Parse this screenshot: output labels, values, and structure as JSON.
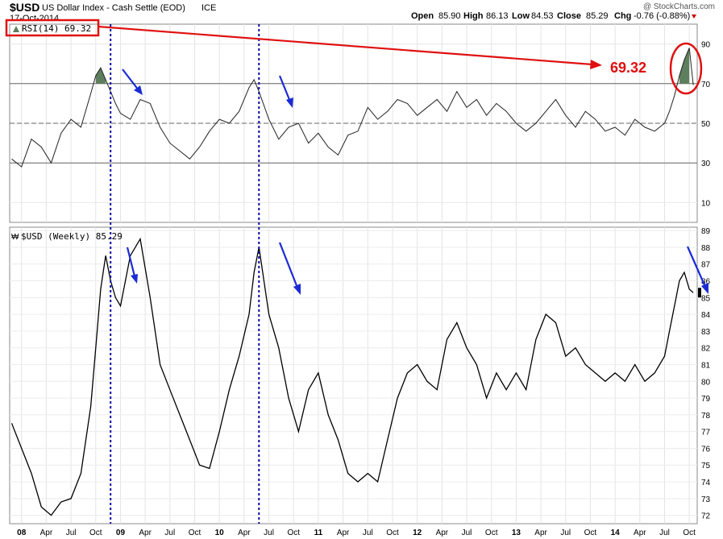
{
  "header": {
    "symbol": "$USD",
    "name": "US Dollar Index - Cash Settle (EOD)",
    "exchange": "ICE",
    "date": "17-Oct-2014",
    "open_label": "Open",
    "open": "85.90",
    "high_label": "High",
    "high": "86.13",
    "low_label": "Low",
    "low": "84.53",
    "close_label": "Close",
    "close": "85.29",
    "chg_label": "Chg",
    "chg": "-0.76 (-0.88%)",
    "watermark": "@ StockCharts.com"
  },
  "colors": {
    "price": "#000000",
    "rsi": "#222222",
    "overbought_fill": "#5d7f5d",
    "oversold_fill": "#a07070",
    "annotation_red": "#e01010",
    "arrow_blue": "#1a2bd6",
    "vline_blue": "#0a0aa0",
    "chg_red": "#cc0000"
  },
  "chart_data": [
    {
      "type": "line",
      "title": "RSI(14) 69.32",
      "ylim": [
        0,
        100
      ],
      "y_ticks": [
        "10",
        "30",
        "50",
        "70",
        "90"
      ],
      "reference_lines": [
        30,
        50,
        70
      ],
      "x": [
        2007.9,
        2008.0,
        2008.1,
        2008.2,
        2008.3,
        2008.4,
        2008.5,
        2008.6,
        2008.7,
        2008.75,
        2008.8,
        2008.85,
        2008.9,
        2008.95,
        2009.0,
        2009.1,
        2009.2,
        2009.3,
        2009.4,
        2009.5,
        2009.6,
        2009.7,
        2009.8,
        2009.9,
        2010.0,
        2010.1,
        2010.2,
        2010.3,
        2010.35,
        2010.4,
        2010.5,
        2010.6,
        2010.7,
        2010.8,
        2010.9,
        2011.0,
        2011.1,
        2011.2,
        2011.3,
        2011.4,
        2011.5,
        2011.6,
        2011.7,
        2011.8,
        2011.9,
        2012.0,
        2012.1,
        2012.2,
        2012.3,
        2012.4,
        2012.5,
        2012.6,
        2012.7,
        2012.8,
        2012.9,
        2013.0,
        2013.1,
        2013.2,
        2013.3,
        2013.4,
        2013.5,
        2013.6,
        2013.7,
        2013.8,
        2013.9,
        2014.0,
        2014.1,
        2014.2,
        2014.3,
        2014.4,
        2014.5,
        2014.55,
        2014.6,
        2014.65,
        2014.7,
        2014.75,
        2014.79
      ],
      "y": [
        32,
        28,
        42,
        38,
        30,
        45,
        52,
        48,
        65,
        74,
        78,
        72,
        66,
        60,
        55,
        52,
        62,
        60,
        48,
        40,
        36,
        32,
        38,
        46,
        52,
        50,
        56,
        68,
        72,
        66,
        52,
        42,
        48,
        50,
        40,
        45,
        38,
        34,
        44,
        46,
        58,
        52,
        56,
        62,
        60,
        54,
        58,
        62,
        56,
        66,
        58,
        62,
        54,
        60,
        56,
        50,
        46,
        50,
        56,
        62,
        54,
        48,
        56,
        52,
        46,
        48,
        44,
        52,
        48,
        46,
        50,
        56,
        64,
        74,
        82,
        88,
        69.32
      ],
      "overbought_above": 70,
      "oversold_below": 30
    },
    {
      "type": "line",
      "title": "$USD (Weekly) 85.29",
      "ylim": [
        71.5,
        89.2
      ],
      "y_ticks": [
        "72",
        "73",
        "74",
        "75",
        "76",
        "77",
        "78",
        "79",
        "80",
        "81",
        "82",
        "83",
        "84",
        "85",
        "86",
        "87",
        "88",
        "89"
      ],
      "x_ticks": [
        {
          "label": "08",
          "x": 2008.0
        },
        {
          "label": "Apr",
          "x": 2008.25
        },
        {
          "label": "Jul",
          "x": 2008.5
        },
        {
          "label": "Oct",
          "x": 2008.75
        },
        {
          "label": "09",
          "x": 2009.0
        },
        {
          "label": "Apr",
          "x": 2009.25
        },
        {
          "label": "Jul",
          "x": 2009.5
        },
        {
          "label": "Oct",
          "x": 2009.75
        },
        {
          "label": "10",
          "x": 2010.0
        },
        {
          "label": "Apr",
          "x": 2010.25
        },
        {
          "label": "Jul",
          "x": 2010.5
        },
        {
          "label": "Oct",
          "x": 2010.75
        },
        {
          "label": "11",
          "x": 2011.0
        },
        {
          "label": "Apr",
          "x": 2011.25
        },
        {
          "label": "Jul",
          "x": 2011.5
        },
        {
          "label": "Oct",
          "x": 2011.75
        },
        {
          "label": "12",
          "x": 2012.0
        },
        {
          "label": "Apr",
          "x": 2012.25
        },
        {
          "label": "Jul",
          "x": 2012.5
        },
        {
          "label": "Oct",
          "x": 2012.75
        },
        {
          "label": "13",
          "x": 2013.0
        },
        {
          "label": "Apr",
          "x": 2013.25
        },
        {
          "label": "Jul",
          "x": 2013.5
        },
        {
          "label": "Oct",
          "x": 2013.75
        },
        {
          "label": "14",
          "x": 2014.0
        },
        {
          "label": "Apr",
          "x": 2014.25
        },
        {
          "label": "Jul",
          "x": 2014.5
        },
        {
          "label": "Oct",
          "x": 2014.75
        }
      ],
      "xlim": [
        2007.88,
        2014.83
      ],
      "x": [
        2007.9,
        2008.0,
        2008.1,
        2008.2,
        2008.3,
        2008.4,
        2008.5,
        2008.6,
        2008.7,
        2008.75,
        2008.8,
        2008.85,
        2008.9,
        2008.95,
        2009.0,
        2009.1,
        2009.2,
        2009.3,
        2009.4,
        2009.5,
        2009.6,
        2009.7,
        2009.8,
        2009.9,
        2010.0,
        2010.1,
        2010.2,
        2010.3,
        2010.35,
        2010.4,
        2010.5,
        2010.6,
        2010.7,
        2010.8,
        2010.9,
        2011.0,
        2011.1,
        2011.2,
        2011.3,
        2011.4,
        2011.5,
        2011.6,
        2011.7,
        2011.8,
        2011.9,
        2012.0,
        2012.1,
        2012.2,
        2012.3,
        2012.4,
        2012.5,
        2012.6,
        2012.7,
        2012.8,
        2012.9,
        2013.0,
        2013.1,
        2013.2,
        2013.3,
        2013.4,
        2013.5,
        2013.6,
        2013.7,
        2013.8,
        2013.9,
        2014.0,
        2014.1,
        2014.2,
        2014.3,
        2014.4,
        2014.5,
        2014.55,
        2014.6,
        2014.65,
        2014.7,
        2014.75,
        2014.79
      ],
      "y": [
        77.5,
        76.0,
        74.5,
        72.5,
        72.0,
        72.8,
        73.0,
        74.5,
        78.5,
        82.0,
        85.5,
        87.5,
        86.0,
        85.0,
        84.5,
        87.5,
        88.5,
        85.0,
        81.0,
        79.5,
        78.0,
        76.5,
        75.0,
        74.8,
        77.0,
        79.5,
        81.5,
        84.0,
        86.5,
        88.0,
        84.0,
        82.0,
        79.0,
        77.0,
        79.5,
        80.5,
        78.0,
        76.5,
        74.5,
        74.0,
        74.5,
        74.0,
        76.5,
        79.0,
        80.5,
        81.0,
        80.0,
        79.5,
        82.5,
        83.5,
        82.0,
        81.0,
        79.0,
        80.5,
        79.5,
        80.5,
        79.5,
        82.5,
        84.0,
        83.5,
        81.5,
        82.0,
        81.0,
        80.5,
        80.0,
        80.5,
        80.0,
        81.0,
        80.0,
        80.5,
        81.5,
        83.0,
        84.5,
        86.0,
        86.5,
        85.5,
        85.29
      ],
      "markers": {
        "vlines_x": [
          2008.9,
          2010.4
        ],
        "current_value": "85.29"
      }
    }
  ],
  "annotations": {
    "rsi_value_label": "69.32"
  }
}
